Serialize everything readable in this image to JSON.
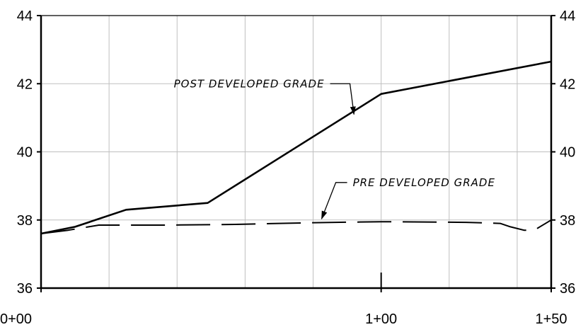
{
  "chart_data": {
    "type": "line",
    "title": "",
    "xlabel": "",
    "ylabel": "",
    "xlim": [
      0,
      150
    ],
    "ylim": [
      36,
      44
    ],
    "x_ticks": [
      {
        "value": 0,
        "label": "0+00"
      },
      {
        "value": 100,
        "label": "1+00"
      },
      {
        "value": 150,
        "label": "1+50"
      }
    ],
    "y_ticks": [
      {
        "value": 36,
        "label": "36"
      },
      {
        "value": 38,
        "label": "38"
      },
      {
        "value": 40,
        "label": "40"
      },
      {
        "value": 42,
        "label": "42"
      },
      {
        "value": 44,
        "label": "44"
      }
    ],
    "x_grid_step": 20,
    "y_grid_step": 2,
    "grid": true,
    "y_axis_labels_both_sides": true,
    "series": [
      {
        "name": "POST DEVELOPED GRADE",
        "style": "solid",
        "x": [
          0,
          10,
          25,
          49,
          100,
          150
        ],
        "y": [
          37.6,
          37.8,
          38.3,
          38.5,
          41.7,
          42.65
        ]
      },
      {
        "name": "PRE DEVELOPED GRADE",
        "style": "dashed",
        "x": [
          0,
          8,
          17,
          37,
          57,
          80,
          100,
          125,
          135,
          138,
          142,
          145,
          150
        ],
        "y": [
          37.6,
          37.7,
          37.85,
          37.85,
          37.87,
          37.92,
          37.95,
          37.93,
          37.9,
          37.8,
          37.7,
          37.7,
          38.0
        ]
      }
    ],
    "annotations": [
      {
        "text": "POST DEVELOPED GRADE",
        "series": 0,
        "target": {
          "x": 92,
          "y": 41.1
        },
        "elbow": {
          "x": 85,
          "y": 42
        }
      },
      {
        "text": "PRE DEVELOPED GRADE",
        "series": 1,
        "target": {
          "x": 80,
          "y": 37.95
        },
        "elbow": {
          "x": 90,
          "y": 39.1
        }
      }
    ],
    "colors": {
      "line": "#000000",
      "grid": "#bfbfbf",
      "axis": "#000000"
    }
  }
}
